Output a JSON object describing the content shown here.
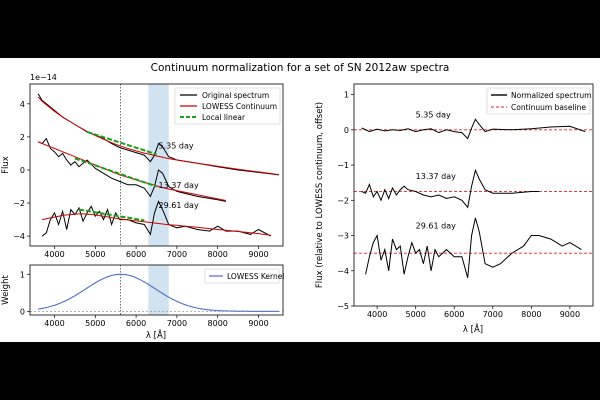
{
  "figure_title": "Continuum normalization for a set of SN 2012aw spectra",
  "colors": {
    "spectrum": "#000000",
    "lowess": "#d00000",
    "local_linear": "#18a018",
    "kernel": "#4a6fc8",
    "band": "#c6dcee",
    "baseline": "#e02020"
  },
  "chart_data": [
    {
      "id": "spectra",
      "type": "line",
      "title": "",
      "xlabel": "",
      "ylabel": "Flux",
      "y_scale_label": "1e−14",
      "xlim": [
        3400,
        9600
      ],
      "ylim": [
        -4.6,
        5.2
      ],
      "xticks": [
        4000,
        5000,
        6000,
        7000,
        8000,
        9000
      ],
      "yticks": [
        -4,
        -2,
        0,
        2,
        4
      ],
      "vline_x": 5620,
      "shaded_band": [
        6300,
        6800
      ],
      "legend": [
        "Original spectrum",
        "LOWESS Continuum",
        "Local linear"
      ],
      "legend_loc": "upper right",
      "series": [
        {
          "name": "5.35 day",
          "x": [
            3600,
            3700,
            3800,
            4000,
            4200,
            4400,
            4600,
            4800,
            5000,
            5200,
            5400,
            5600,
            5800,
            6000,
            6200,
            6350,
            6450,
            6550,
            6650,
            6800,
            7000,
            7500,
            8000,
            8500,
            9000,
            9500
          ],
          "original": [
            4.6,
            4.2,
            4.0,
            3.6,
            3.2,
            2.9,
            2.6,
            2.3,
            2.1,
            1.9,
            1.6,
            1.35,
            1.2,
            1.05,
            0.9,
            0.5,
            0.9,
            1.6,
            1.4,
            0.8,
            0.6,
            0.4,
            0.2,
            0.0,
            -0.15,
            -0.3
          ],
          "continuum": [
            4.4,
            4.15,
            3.95,
            3.55,
            3.2,
            2.9,
            2.6,
            2.33,
            2.08,
            1.86,
            1.65,
            1.46,
            1.3,
            1.15,
            1.02,
            0.94,
            0.88,
            0.82,
            0.77,
            0.69,
            0.6,
            0.4,
            0.22,
            0.04,
            -0.12,
            -0.28
          ],
          "local_linear": {
            "x": [
              4800,
              6500
            ],
            "y": [
              2.3,
              0.95
            ]
          },
          "label": "5.35 day",
          "label_at": [
            6550,
            1.3
          ]
        },
        {
          "name": "13.37 day",
          "x": [
            3600,
            3700,
            3800,
            3900,
            4000,
            4100,
            4200,
            4300,
            4400,
            4500,
            4600,
            4700,
            4800,
            5000,
            5200,
            5400,
            5600,
            5800,
            6000,
            6200,
            6350,
            6450,
            6550,
            6650,
            6800,
            7000,
            7500,
            8000,
            8200
          ],
          "original": [
            1.7,
            1.6,
            1.9,
            1.3,
            1.1,
            0.8,
            1.0,
            0.6,
            0.3,
            0.5,
            0.2,
            0.4,
            0.6,
            0.1,
            -0.2,
            -0.5,
            -0.7,
            -0.9,
            -0.9,
            -1.1,
            -1.6,
            -1.0,
            0.0,
            -0.2,
            -1.0,
            -1.3,
            -1.6,
            -1.8,
            -1.9
          ],
          "continuum": [
            1.7,
            1.6,
            1.5,
            1.4,
            1.3,
            1.2,
            1.1,
            1.0,
            0.9,
            0.8,
            0.7,
            0.6,
            0.5,
            0.3,
            0.1,
            -0.1,
            -0.3,
            -0.45,
            -0.6,
            -0.75,
            -0.85,
            -0.92,
            -1.0,
            -1.07,
            -1.15,
            -1.25,
            -1.5,
            -1.75,
            -1.85
          ],
          "local_linear": {
            "x": [
              4500,
              6500
            ],
            "y": [
              0.7,
              -1.0
            ]
          },
          "label": "13.37 day",
          "label_at": [
            6550,
            -1.1
          ]
        },
        {
          "name": "29.61 day",
          "x": [
            3700,
            3800,
            3900,
            4000,
            4100,
            4200,
            4300,
            4400,
            4500,
            4600,
            4700,
            4800,
            4900,
            5000,
            5100,
            5200,
            5300,
            5400,
            5500,
            5600,
            5800,
            6000,
            6200,
            6350,
            6450,
            6550,
            6650,
            6800,
            7000,
            7200,
            7500,
            7800,
            8000,
            8200,
            8500,
            8800,
            9000,
            9300
          ],
          "original": [
            -4.0,
            -3.8,
            -3.0,
            -2.6,
            -3.3,
            -2.5,
            -3.6,
            -2.4,
            -2.7,
            -2.3,
            -3.1,
            -2.6,
            -2.2,
            -2.8,
            -2.5,
            -3.0,
            -2.4,
            -3.3,
            -2.6,
            -3.0,
            -3.0,
            -3.2,
            -3.3,
            -3.9,
            -2.6,
            -1.9,
            -2.4,
            -3.3,
            -3.5,
            -3.4,
            -3.6,
            -3.7,
            -3.4,
            -3.7,
            -3.7,
            -3.9,
            -3.6,
            -4.0
          ],
          "continuum": [
            -3.0,
            -2.95,
            -2.9,
            -2.85,
            -2.8,
            -2.75,
            -2.72,
            -2.7,
            -2.68,
            -2.66,
            -2.66,
            -2.67,
            -2.69,
            -2.72,
            -2.76,
            -2.8,
            -2.84,
            -2.88,
            -2.92,
            -2.96,
            -3.02,
            -3.08,
            -3.13,
            -3.18,
            -3.21,
            -3.24,
            -3.27,
            -3.31,
            -3.35,
            -3.4,
            -3.47,
            -3.55,
            -3.6,
            -3.65,
            -3.72,
            -3.8,
            -3.85,
            -3.95
          ],
          "local_linear": {
            "x": [
              4600,
              6200
            ],
            "y": [
              -2.4,
              -3.05
            ]
          },
          "label": "29.61 day",
          "label_at": [
            6550,
            -2.3
          ]
        }
      ]
    },
    {
      "id": "kernel",
      "type": "line",
      "xlabel": "λ [Å]",
      "ylabel": "Weight",
      "xlim": [
        3400,
        9600
      ],
      "ylim": [
        -0.1,
        1.25
      ],
      "xticks": [
        4000,
        5000,
        6000,
        7000,
        8000,
        9000
      ],
      "yticks": [
        0,
        1
      ],
      "legend": [
        "LOWESS Kernel"
      ],
      "legend_loc": "upper right",
      "vline_x": 5620,
      "shaded_band": [
        6300,
        6800
      ],
      "kernel_center": 5620,
      "kernel_sigma": 850,
      "kernel_range": [
        3600,
        9500
      ]
    },
    {
      "id": "normalized",
      "type": "line",
      "xlabel": "λ [Å]",
      "ylabel": "Flux (relative to LOWESS continuum, offset)",
      "xlim": [
        3400,
        9600
      ],
      "ylim": [
        -5,
        1.3
      ],
      "xticks": [
        4000,
        5000,
        6000,
        7000,
        8000,
        9000
      ],
      "yticks": [
        -5,
        -4,
        -3,
        -2,
        -1,
        0,
        1
      ],
      "legend": [
        "Normalized spectrum",
        "Continuum baseline"
      ],
      "legend_loc": "upper right",
      "series": [
        {
          "name": "5.35 day",
          "baseline": 0,
          "x": [
            3600,
            3800,
            4000,
            4200,
            4400,
            4600,
            4800,
            5000,
            5200,
            5400,
            5600,
            5800,
            6000,
            6200,
            6350,
            6450,
            6550,
            6650,
            6800,
            7000,
            7500,
            8000,
            8500,
            9000,
            9400
          ],
          "y": [
            0.05,
            -0.05,
            0.02,
            -0.03,
            0.0,
            -0.02,
            0.03,
            -0.05,
            0.0,
            0.03,
            -0.08,
            0.0,
            -0.05,
            -0.08,
            -0.25,
            0.05,
            0.3,
            0.15,
            -0.05,
            0.02,
            0.0,
            0.03,
            0.08,
            0.1,
            -0.05
          ],
          "label": "5.35 day",
          "label_at": [
            5000,
            0.35
          ]
        },
        {
          "name": "13.37 day",
          "baseline": -1.75,
          "x": [
            3600,
            3700,
            3800,
            3900,
            4000,
            4100,
            4200,
            4300,
            4400,
            4500,
            4600,
            4700,
            4800,
            5000,
            5200,
            5400,
            5600,
            5800,
            6000,
            6200,
            6350,
            6450,
            6550,
            6650,
            6800,
            7000,
            7500,
            8000,
            8200
          ],
          "y": [
            -1.75,
            -1.8,
            -1.55,
            -1.9,
            -1.75,
            -2.0,
            -1.7,
            -1.95,
            -1.65,
            -1.85,
            -1.7,
            -1.6,
            -1.7,
            -1.75,
            -1.85,
            -1.9,
            -1.85,
            -1.95,
            -1.9,
            -2.0,
            -2.2,
            -1.6,
            -1.15,
            -1.4,
            -1.7,
            -1.8,
            -1.8,
            -1.75,
            -1.75
          ],
          "label": "13.37 day",
          "label_at": [
            5000,
            -1.4
          ]
        },
        {
          "name": "29.61 day",
          "baseline": -3.5,
          "x": [
            3700,
            3800,
            3900,
            4000,
            4100,
            4200,
            4300,
            4400,
            4500,
            4600,
            4700,
            4800,
            4900,
            5000,
            5100,
            5200,
            5300,
            5400,
            5500,
            5600,
            5800,
            6000,
            6200,
            6350,
            6450,
            6550,
            6650,
            6800,
            7000,
            7200,
            7500,
            7800,
            8000,
            8200,
            8500,
            8800,
            9000,
            9300
          ],
          "y": [
            -4.1,
            -3.6,
            -3.2,
            -3.0,
            -3.7,
            -3.4,
            -4.0,
            -3.1,
            -3.4,
            -3.3,
            -4.1,
            -3.6,
            -3.2,
            -3.5,
            -3.4,
            -3.8,
            -3.3,
            -4.0,
            -3.4,
            -3.6,
            -3.4,
            -3.6,
            -3.6,
            -4.2,
            -3.0,
            -2.5,
            -2.9,
            -3.8,
            -3.9,
            -3.8,
            -3.5,
            -3.3,
            -3.0,
            -3.0,
            -3.1,
            -3.3,
            -3.2,
            -3.4
          ],
          "label": "29.61 day",
          "label_at": [
            5000,
            -2.8
          ]
        }
      ]
    }
  ]
}
